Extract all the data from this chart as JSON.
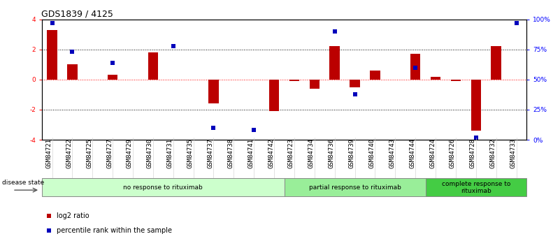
{
  "title": "GDS1839 / 4125",
  "categories": [
    "GSM84721",
    "GSM84722",
    "GSM84725",
    "GSM84727",
    "GSM84729",
    "GSM84730",
    "GSM84731",
    "GSM84735",
    "GSM84737",
    "GSM84738",
    "GSM84741",
    "GSM84742",
    "GSM84723",
    "GSM84734",
    "GSM84736",
    "GSM84739",
    "GSM84740",
    "GSM84743",
    "GSM84744",
    "GSM84724",
    "GSM84726",
    "GSM84728",
    "GSM84732",
    "GSM84733"
  ],
  "log2_ratio": [
    3.3,
    1.0,
    0.0,
    0.3,
    0.0,
    1.8,
    0.0,
    0.0,
    -1.6,
    0.0,
    0.0,
    -2.1,
    -0.1,
    -0.6,
    2.2,
    -0.5,
    0.6,
    0.0,
    1.7,
    0.2,
    -0.1,
    -3.4,
    2.2,
    0.0
  ],
  "percentile_rank": [
    97,
    73,
    -1,
    64,
    -1,
    -1,
    78,
    -1,
    10,
    -1,
    8,
    -1,
    -1,
    -1,
    90,
    38,
    -1,
    -1,
    60,
    -1,
    -1,
    2,
    -1,
    97
  ],
  "disease_groups": [
    {
      "label": "no response to rituximab",
      "start": 0,
      "end": 11,
      "color": "#ccffcc"
    },
    {
      "label": "partial response to rituximab",
      "start": 12,
      "end": 18,
      "color": "#99ee99"
    },
    {
      "label": "complete response to\nrituximab",
      "start": 19,
      "end": 23,
      "color": "#44cc44"
    }
  ],
  "ylim": [
    -4,
    4
  ],
  "y2lim": [
    0,
    100
  ],
  "yticks": [
    -4,
    -2,
    0,
    2,
    4
  ],
  "y2ticks": [
    0,
    25,
    50,
    75,
    100
  ],
  "ytick_labels": [
    "-4",
    "-2",
    "0",
    "2",
    "4"
  ],
  "y2tick_labels": [
    "0%",
    "25%",
    "50%",
    "75%",
    "100%"
  ],
  "hlines_dotted": [
    -2,
    2
  ],
  "hline_red": 0,
  "bar_color": "#bb0000",
  "dot_color": "#0000bb",
  "bar_width": 0.5,
  "dot_size": 15,
  "legend_items": [
    {
      "label": "log2 ratio",
      "color": "#bb0000"
    },
    {
      "label": "percentile rank within the sample",
      "color": "#0000bb"
    }
  ],
  "disease_state_label": "disease state",
  "background_color": "#ffffff",
  "title_fontsize": 9,
  "tick_label_fontsize": 6.5
}
